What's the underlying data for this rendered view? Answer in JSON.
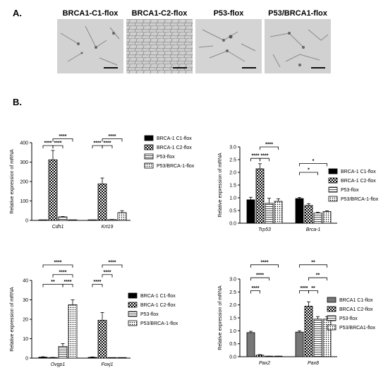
{
  "panels": {
    "a_label": "A.",
    "b_label": "B.",
    "micrographs": [
      {
        "title": "BRCA1-C1-flox"
      },
      {
        "title": "BRCA1-C2-flox"
      },
      {
        "title": "P53-flox"
      },
      {
        "title": "P53/BRCA1-flox"
      }
    ]
  },
  "colors": {
    "black": "#000000",
    "gray": "#777777",
    "white": "#ffffff"
  },
  "chart_data": [
    {
      "type": "bar",
      "ylabel": "Relative expression of mRNA",
      "ylim": [
        0,
        400
      ],
      "yticks": [
        0,
        100,
        200,
        300,
        400
      ],
      "categories": [
        "Cdh1",
        "Krt19"
      ],
      "series": [
        {
          "name": "BRCA-1 C1-flox",
          "values": [
            0.5,
            0.5
          ],
          "errors": [
            0.3,
            0.3
          ],
          "fill": "black"
        },
        {
          "name": "BRCA-1 C2-flox",
          "values": [
            312,
            188
          ],
          "errors": [
            48,
            30
          ],
          "fill": "check"
        },
        {
          "name": "P53-flox",
          "values": [
            18,
            4
          ],
          "errors": [
            2,
            1
          ],
          "fill": "hlines"
        },
        {
          "name": "P53/BRCA1-flox",
          "values": [
            1,
            40
          ],
          "errors": [
            0.5,
            10
          ],
          "fill": "dots"
        }
      ],
      "legend": [
        "BRCA-1 C1-flox",
        "BRCA-1 C2-flox",
        "P53-flox",
        "P53/BRCA-1-flox"
      ],
      "significance": [
        {
          "cat": 0,
          "from": 0,
          "to": 1,
          "y": 385,
          "label": "****"
        },
        {
          "cat": 0,
          "from": 1,
          "to": 2,
          "y": 385,
          "label": "****"
        },
        {
          "cat": 0,
          "from": 1,
          "to": 3,
          "y": 420,
          "label": "****"
        },
        {
          "cat": 1,
          "from": 0,
          "to": 1,
          "y": 385,
          "label": "****"
        },
        {
          "cat": 1,
          "from": 1,
          "to": 2,
          "y": 385,
          "label": "****"
        },
        {
          "cat": 1,
          "from": 1,
          "to": 3,
          "y": 420,
          "label": "****"
        }
      ]
    },
    {
      "type": "bar",
      "ylabel": "Relative expression of mRNA",
      "ylim": [
        0,
        3.0
      ],
      "yticks": [
        0,
        0.5,
        1.0,
        1.5,
        2.0,
        2.5,
        3.0
      ],
      "yticklabels": [
        "0.0",
        "0.5",
        "1.0",
        "1.5",
        "2.0",
        "2.5",
        "3.0"
      ],
      "categories": [
        "Trp53",
        "Brca-1"
      ],
      "series": [
        {
          "name": "BRCA-1 C1-flox",
          "values": [
            0.92,
            0.97
          ],
          "errors": [
            0.1,
            0.04
          ],
          "fill": "black"
        },
        {
          "name": "BRCA-1 C2-flox",
          "values": [
            2.14,
            0.7
          ],
          "errors": [
            0.2,
            0.07
          ],
          "fill": "check"
        },
        {
          "name": "P53-flox",
          "values": [
            0.78,
            0.4
          ],
          "errors": [
            0.2,
            0.03
          ],
          "fill": "hlines"
        },
        {
          "name": "P53/BRCA1-flox",
          "values": [
            0.86,
            0.46
          ],
          "errors": [
            0.1,
            0.03
          ],
          "fill": "dots"
        }
      ],
      "legend": [
        "BRCA-1 C1-flox",
        "BRCA-1 C2-flox",
        "P53-flox",
        "P53/BRCA-1-flox"
      ],
      "significance": [
        {
          "cat": 0,
          "from": 0,
          "to": 1,
          "y": 2.55,
          "label": "****"
        },
        {
          "cat": 0,
          "from": 1,
          "to": 2,
          "y": 2.55,
          "label": "****"
        },
        {
          "cat": 0,
          "from": 1,
          "to": 3,
          "y": 3.0,
          "label": "****"
        },
        {
          "cat": 1,
          "from": 0,
          "to": 2,
          "y": 2.0,
          "label": "*"
        },
        {
          "cat": 1,
          "from": 0,
          "to": 3,
          "y": 2.35,
          "label": "*"
        }
      ]
    },
    {
      "type": "bar",
      "ylabel": "Relative expression of mRNA",
      "ylim": [
        0,
        40
      ],
      "yticks": [
        0,
        10,
        20,
        30,
        40
      ],
      "categories": [
        "Ovgp1",
        "Foxj1"
      ],
      "series": [
        {
          "name": "BRCA-1 C1-flox",
          "values": [
            0.5,
            0.4
          ],
          "errors": [
            0.2,
            0.2
          ],
          "fill": "black"
        },
        {
          "name": "BRCA-1 C2-flox",
          "values": [
            0.3,
            19.5
          ],
          "errors": [
            0.1,
            4.0
          ],
          "fill": "check"
        },
        {
          "name": "P53-flox",
          "values": [
            6.0,
            0.1
          ],
          "errors": [
            1.5,
            0.05
          ],
          "fill": "hlines"
        },
        {
          "name": "P53/BRCA1-flox",
          "values": [
            27.5,
            0.1
          ],
          "errors": [
            2.5,
            0.05
          ],
          "fill": "dots"
        }
      ],
      "legend": [
        "BRCA-1 C1-flox",
        "BRCA-1 C2-flox",
        "P53-flox",
        "P53/BRCA-1-flox"
      ],
      "significance": [
        {
          "cat": 0,
          "from": 0,
          "to": 2,
          "y": 38,
          "label": "**"
        },
        {
          "cat": 0,
          "from": 2,
          "to": 3,
          "y": 38,
          "label": "****"
        },
        {
          "cat": 0,
          "from": 1,
          "to": 3,
          "y": 43,
          "label": "****"
        },
        {
          "cat": 0,
          "from": 0,
          "to": 3,
          "y": 48,
          "label": "****"
        },
        {
          "cat": 1,
          "from": 0,
          "to": 1,
          "y": 38,
          "label": "****"
        },
        {
          "cat": 1,
          "from": 1,
          "to": 2,
          "y": 43,
          "label": "****"
        },
        {
          "cat": 1,
          "from": 1,
          "to": 3,
          "y": 48,
          "label": "****"
        }
      ]
    },
    {
      "type": "bar",
      "ylabel": "Relative expression of mRNA",
      "ylim": [
        0,
        3.0
      ],
      "yticks": [
        0,
        0.5,
        1.0,
        1.5,
        2.0,
        2.5,
        3.0
      ],
      "yticklabels": [
        "0.0",
        "0.5",
        "1.0",
        "1.5",
        "2.0",
        "2.5",
        "3.0"
      ],
      "categories": [
        "Pax2",
        "Pax8"
      ],
      "series": [
        {
          "name": "BRCA1 C1-flox",
          "values": [
            0.93,
            0.95
          ],
          "errors": [
            0.05,
            0.05
          ],
          "fill": "gray"
        },
        {
          "name": "BRCA1 C2-flox",
          "values": [
            0.06,
            1.95
          ],
          "errors": [
            0.02,
            0.17
          ],
          "fill": "check"
        },
        {
          "name": "P53-flox",
          "values": [
            0.01,
            1.45
          ],
          "errors": [
            0.01,
            0.1
          ],
          "fill": "hlines"
        },
        {
          "name": "P53/BRCA1-flox",
          "values": [
            0.01,
            1.45
          ],
          "errors": [
            0.01,
            0.1
          ],
          "fill": "dots"
        }
      ],
      "legend": [
        "BRCA1 C1-flox",
        "BRCA1 C2-flox",
        "P53-flox",
        "P53/BRCA1-flox"
      ],
      "significance": [
        {
          "cat": 0,
          "from": 0,
          "to": 1,
          "y": 2.55,
          "label": "****"
        },
        {
          "cat": 0,
          "from": 0,
          "to": 2,
          "y": 3.05,
          "label": "****"
        },
        {
          "cat": 0,
          "from": 0,
          "to": 3,
          "y": 3.55,
          "label": "****"
        },
        {
          "cat": 1,
          "from": 0,
          "to": 1,
          "y": 2.55,
          "label": "****"
        },
        {
          "cat": 1,
          "from": 1,
          "to": 2,
          "y": 2.55,
          "label": "**"
        },
        {
          "cat": 1,
          "from": 1,
          "to": 3,
          "y": 3.05,
          "label": "**"
        },
        {
          "cat": 1,
          "from": 0,
          "to": 3,
          "y": 3.55,
          "label": "**"
        }
      ]
    }
  ]
}
